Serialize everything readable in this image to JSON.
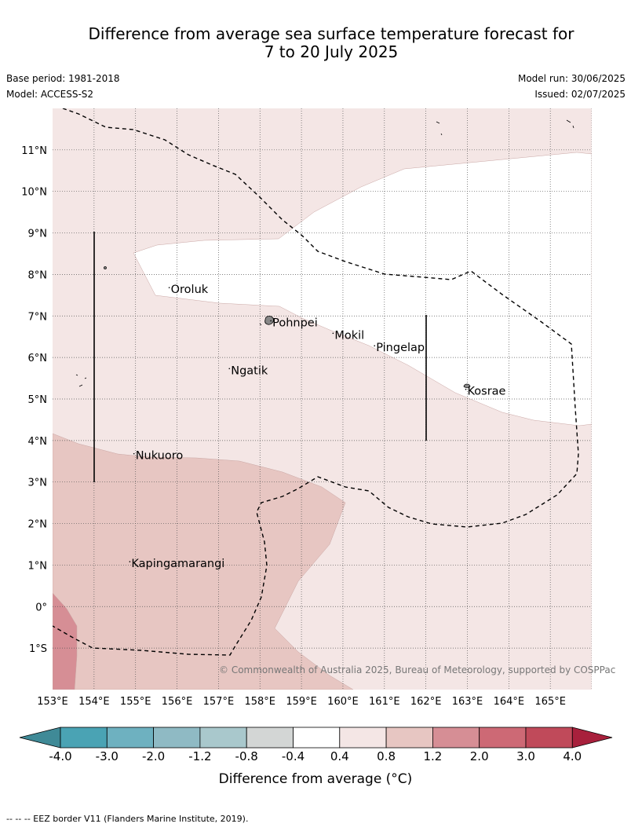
{
  "title_line1": "Difference from average sea surface temperature forecast for",
  "title_line2": "7 to 20 July 2025",
  "meta": {
    "base_period": "Base period: 1981-2018",
    "model": "Model: ACCESS-S2",
    "model_run": "Model run: 30/06/2025",
    "issued": "Issued: 02/07/2025"
  },
  "map": {
    "lon_range": [
      153,
      166
    ],
    "lat_range": [
      -2,
      12
    ],
    "lon_ticks": [
      "153°E",
      "154°E",
      "155°E",
      "156°E",
      "157°E",
      "158°E",
      "159°E",
      "160°E",
      "161°E",
      "162°E",
      "163°E",
      "164°E",
      "165°E"
    ],
    "lat_ticks": [
      "11°N",
      "10°N",
      "9°N",
      "8°N",
      "7°N",
      "6°N",
      "5°N",
      "4°N",
      "3°N",
      "2°N",
      "1°N",
      "0°",
      "1°S"
    ],
    "places": [
      {
        "name": "Oroluk",
        "lon": 155.85,
        "lat": 7.55
      },
      {
        "name": "Pohnpei",
        "lon": 158.3,
        "lat": 6.75
      },
      {
        "name": "Mokil",
        "lon": 159.8,
        "lat": 6.45
      },
      {
        "name": "Pingelap",
        "lon": 160.8,
        "lat": 6.15
      },
      {
        "name": "Ngatik",
        "lon": 157.3,
        "lat": 5.6
      },
      {
        "name": "Kosrae",
        "lon": 163.0,
        "lat": 5.1
      },
      {
        "name": "Nukuoro",
        "lon": 155.0,
        "lat": 3.55
      },
      {
        "name": "Kapingamarangi",
        "lon": 154.9,
        "lat": 0.95
      }
    ],
    "copyright": "© Commonwealth of Australia 2025, Bureau of Meteorology, supported by COSPPac",
    "grid": true
  },
  "colorbar": {
    "labels": [
      "-4.0",
      "-3.0",
      "-2.0",
      "-1.2",
      "-0.8",
      "-0.4",
      "0.4",
      "0.8",
      "1.2",
      "2.0",
      "3.0",
      "4.0"
    ],
    "colors": [
      "#3f8a97",
      "#4aa3b4",
      "#6eb1c0",
      "#8fbac4",
      "#a9c8cc",
      "#d3d6d5",
      "#ffffff",
      "#f4e6e5",
      "#e7c6c2",
      "#d68e95",
      "#cd6975",
      "#c04a5a",
      "#a8203c"
    ],
    "title": "Difference from average (°C)"
  },
  "footer": "--  --  -- EEZ border V11 (Flanders Marine Institute, 2019)."
}
